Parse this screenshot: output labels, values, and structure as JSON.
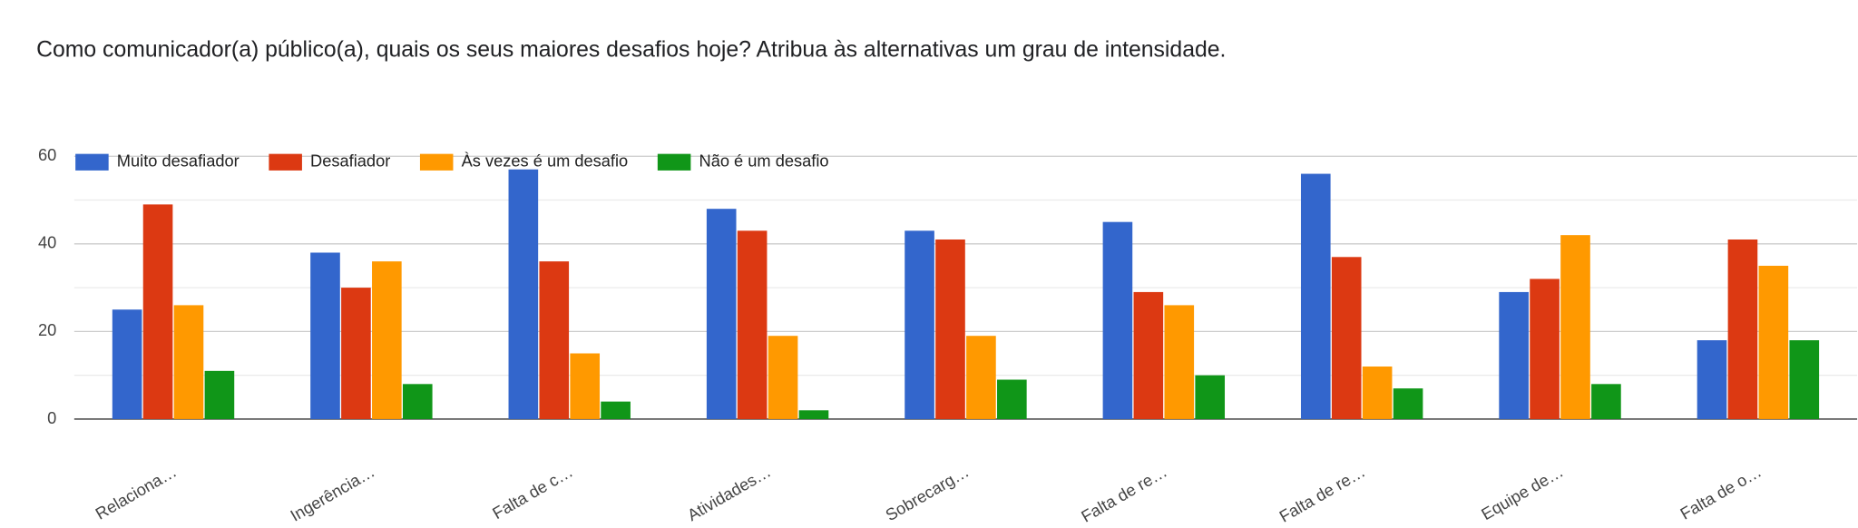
{
  "chart_data": {
    "type": "bar",
    "title": "Como comunicador(a) público(a), quais os seus maiores desafios hoje? Atribua às alternativas um grau de intensidade.",
    "categories": [
      "Relaciona…",
      "Ingerência…",
      "Falta de c…",
      "Atividades…",
      "Sobrecarg…",
      "Falta de re…",
      "Falta de re…",
      "Equipe de…",
      "Falta de o…"
    ],
    "series": [
      {
        "name": "Muito desafiador",
        "color": "#3366cc",
        "values": [
          25,
          38,
          57,
          48,
          43,
          45,
          56,
          29,
          18
        ]
      },
      {
        "name": "Desafiador",
        "color": "#dc3912",
        "values": [
          49,
          30,
          36,
          43,
          41,
          29,
          37,
          32,
          41
        ]
      },
      {
        "name": "Às vezes é um desafio",
        "color": "#ff9900",
        "values": [
          26,
          36,
          15,
          19,
          19,
          26,
          12,
          42,
          35
        ]
      },
      {
        "name": "Não é um desafio",
        "color": "#109618",
        "values": [
          11,
          8,
          4,
          2,
          9,
          10,
          7,
          8,
          18
        ]
      }
    ],
    "ylim": [
      0,
      60
    ],
    "yticks": [
      0,
      20,
      40,
      60
    ],
    "minor_yticks": [
      10,
      30,
      50
    ],
    "grid": true,
    "legend": "top"
  }
}
